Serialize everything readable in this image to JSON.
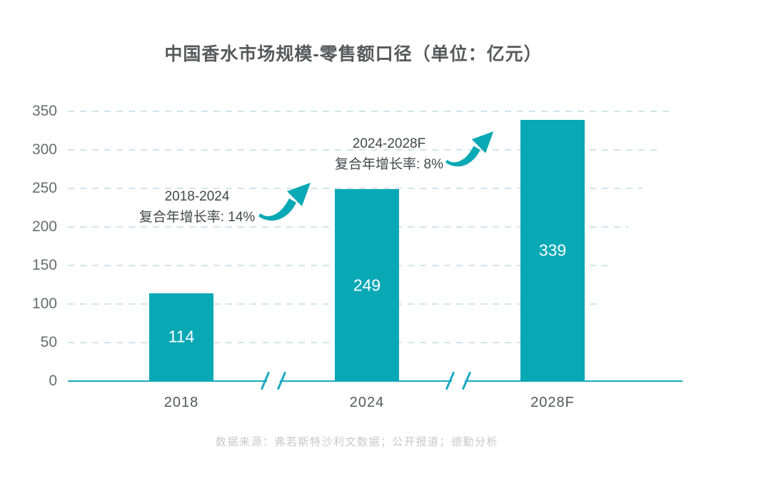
{
  "source_note": "数据来源：弗若斯特沙利文数据；公开报道；德勤分析",
  "colors": {
    "bar": "#08a8b5",
    "axis_line": "#1ba9c2",
    "gridline": "#cfe6ec",
    "title_text": "#58595b",
    "tick_text": "#696c6e",
    "category_text": "#54575a",
    "annotation_text": "#44474a",
    "bar_value_text": "#ffffff",
    "source_text": "#c8c8c8"
  },
  "chart_data": {
    "type": "bar",
    "title": "中国香水市场规模-零售额口径（单位：亿元）",
    "unit": "亿元",
    "categories": [
      "2018",
      "2024",
      "2028F"
    ],
    "values": [
      114,
      249,
      339
    ],
    "ylim": [
      0,
      350
    ],
    "yticks": [
      0,
      50,
      100,
      150,
      200,
      250,
      300,
      350
    ],
    "grid": "dashed-horizontal",
    "legend": "none",
    "x_axis_breaks": 2,
    "annotations": [
      {
        "period": "2018-2024",
        "label": "复合年增长率: 14%"
      },
      {
        "period": "2024-2028F",
        "label": "复合年增长率: 8%"
      }
    ]
  }
}
